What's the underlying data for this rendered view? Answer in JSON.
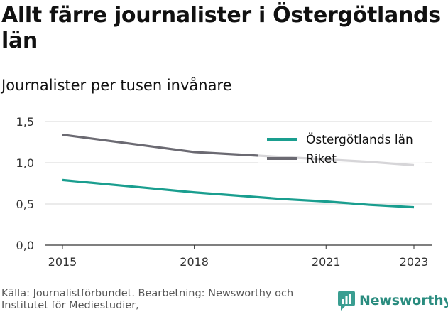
{
  "title": "Allt färre journalister i Östergötlands län",
  "subtitle": "Journalister per tusen invånare",
  "source": "Källa: Journalistförbundet. Bearbetning: Newsworthy och Institutet för Mediestudier,",
  "brand": {
    "name": "Newsworthy",
    "logo_icon": "newsworthy-chart-logo",
    "color": "#3a9e91"
  },
  "chart_data": {
    "type": "line",
    "x": [
      2015,
      2016,
      2017,
      2018,
      2019,
      2020,
      2021,
      2022,
      2023
    ],
    "x_ticks": [
      2015,
      2018,
      2021,
      2023
    ],
    "x_tick_labels": [
      "2015",
      "2018",
      "2021",
      "2023"
    ],
    "y_ticks": [
      0,
      0.5,
      1.0,
      1.5
    ],
    "y_tick_labels": [
      "0,0",
      "0,5",
      "1,0",
      "1,5"
    ],
    "ylim": [
      0,
      1.5
    ],
    "xlim": [
      2015,
      2023
    ],
    "grid": true,
    "legend_position": "top-right",
    "series": [
      {
        "name": "Östergötlands län",
        "color": "#1a9e8f",
        "values": [
          0.79,
          0.74,
          0.69,
          0.64,
          0.6,
          0.56,
          0.53,
          0.49,
          0.46
        ]
      },
      {
        "name": "Riket",
        "color": "#6b6a72",
        "values": [
          1.34,
          1.27,
          1.2,
          1.13,
          1.1,
          1.07,
          1.04,
          1.01,
          0.97
        ]
      }
    ]
  }
}
